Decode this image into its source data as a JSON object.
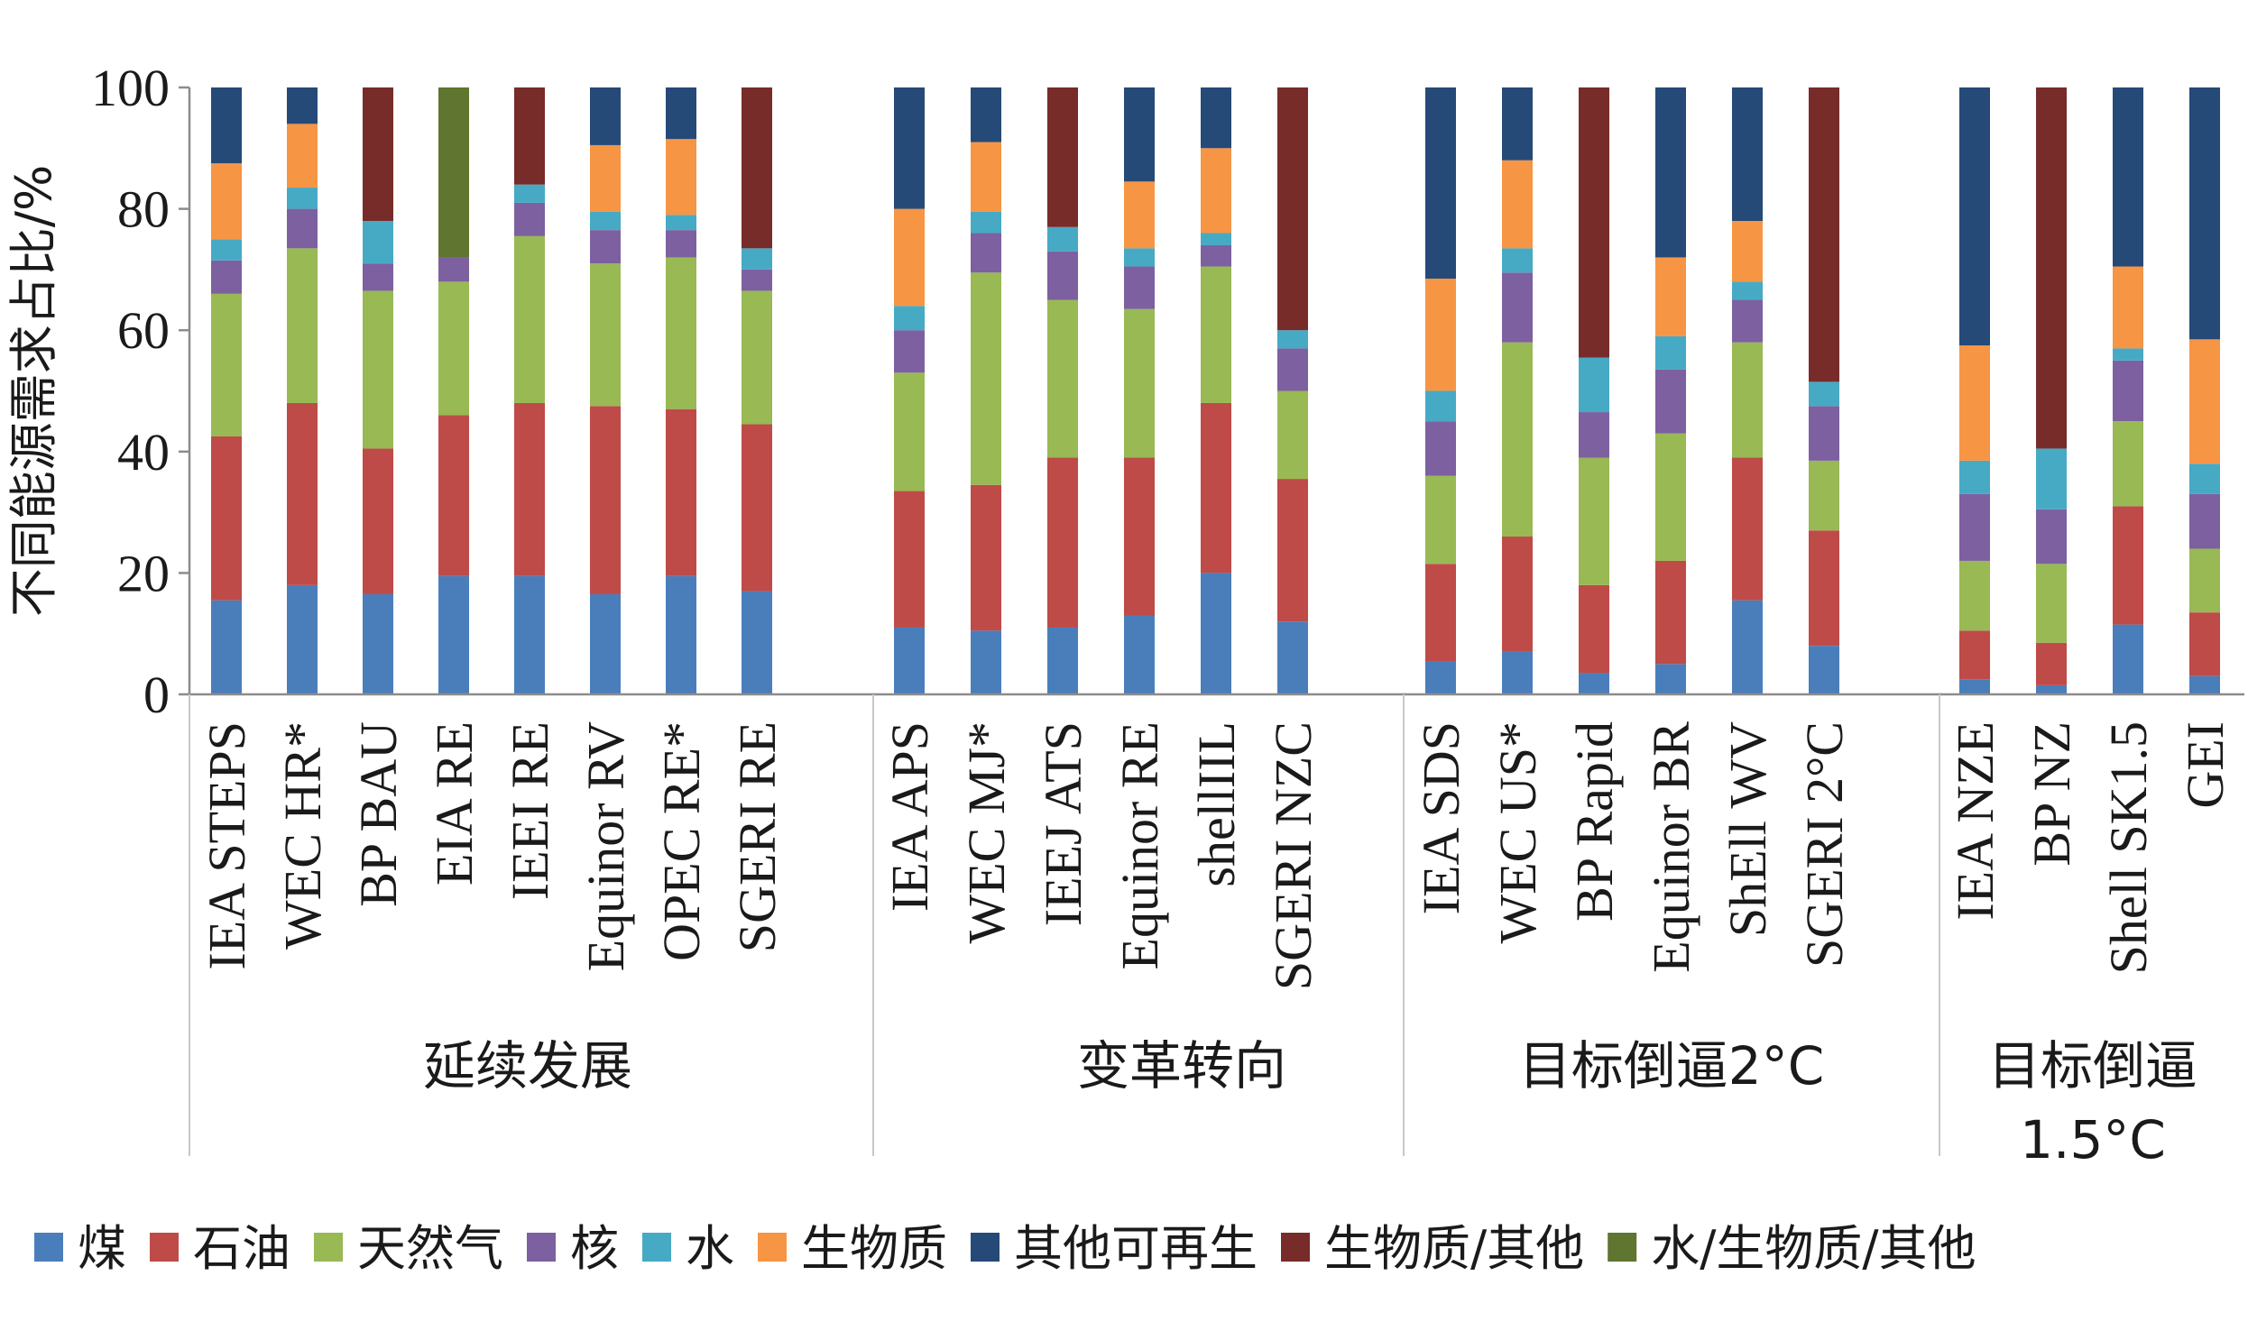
{
  "chart_data": {
    "type": "bar",
    "stacked": true,
    "ylabel": "不同能源需求占比/%",
    "ylim": [
      0,
      100
    ],
    "yticks": [
      0,
      20,
      40,
      60,
      80,
      100
    ],
    "grid": false,
    "legend_position": "bottom",
    "series": [
      {
        "name": "煤",
        "color": "#4a7ebb"
      },
      {
        "name": "石油",
        "color": "#be4b48"
      },
      {
        "name": "天然气",
        "color": "#98b954"
      },
      {
        "name": "核",
        "color": "#7d60a0"
      },
      {
        "name": "水",
        "color": "#46aac5"
      },
      {
        "name": "生物质",
        "color": "#f69544"
      },
      {
        "name": "其他可再生",
        "color": "#254a78"
      },
      {
        "name": "生物质/其他",
        "color": "#772c2a"
      },
      {
        "name": "水/生物质/其他",
        "color": "#5f7530"
      }
    ],
    "groups": [
      {
        "label": "延续发展",
        "categories": [
          "IEA STEPS",
          "WEC HR*",
          "BP BAU",
          "EIA RE",
          "IEEI RE",
          "Equinor RV",
          "OPEC RE*",
          "SGERI RE"
        ]
      },
      {
        "label": "变革转向",
        "categories": [
          "IEA APS",
          "WEC MJ*",
          "IEEJ ATS",
          "Equinor RE",
          "shellIIL",
          "SGERI NZC"
        ]
      },
      {
        "label": "目标倒逼2°C",
        "categories": [
          "IEA SDS",
          "WEC US*",
          "BP Rapid",
          "Equinor BR",
          "ShEll WV",
          "SGERI 2°C"
        ]
      },
      {
        "label": "目标倒逼1.5°C",
        "label_lines": [
          "目标倒逼",
          "1.5°C"
        ],
        "categories": [
          "IEA NZE",
          "BP NZ",
          "Shell SK1.5",
          "GEI"
        ]
      }
    ],
    "values": {
      "IEA STEPS": [
        15.5,
        27,
        23.5,
        5.5,
        3.5,
        12.5,
        12.5,
        0,
        0
      ],
      "WEC HR*": [
        18,
        30,
        25.5,
        6.5,
        3.5,
        10.5,
        6,
        0,
        0
      ],
      "BP BAU": [
        16.5,
        24,
        26,
        4.5,
        7,
        0,
        0,
        22,
        0
      ],
      "EIA RE": [
        19.5,
        26.5,
        22,
        4,
        0,
        0,
        0,
        0,
        28
      ],
      "IEEI RE": [
        19.5,
        28.5,
        27.5,
        5.5,
        3,
        0,
        0,
        16,
        0
      ],
      "Equinor RV": [
        16.5,
        31,
        23.5,
        5.5,
        3,
        11,
        9.5,
        0,
        0
      ],
      "OPEC RE*": [
        19.5,
        27.5,
        25,
        4.5,
        2.5,
        12.5,
        8.5,
        0,
        0
      ],
      "SGERI RE": [
        17,
        27.5,
        22,
        3.5,
        3.5,
        0,
        0,
        26.5,
        0
      ],
      "IEA APS": [
        11,
        22.5,
        19.5,
        7,
        4,
        16,
        20,
        0,
        0
      ],
      "WEC MJ*": [
        10.5,
        24,
        35,
        6.5,
        3.5,
        11.5,
        9,
        0,
        0
      ],
      "IEEJ ATS": [
        11,
        28,
        26,
        8,
        4,
        0,
        0,
        23,
        0
      ],
      "Equinor RE": [
        13,
        26,
        24.5,
        7,
        3,
        11,
        15.5,
        0,
        0
      ],
      "shellIIL": [
        20,
        28,
        22.5,
        3.5,
        2,
        14,
        10,
        0,
        0
      ],
      "SGERI NZC": [
        12,
        23.5,
        14.5,
        7,
        3,
        0,
        0,
        40,
        0
      ],
      "IEA SDS": [
        5.5,
        16,
        14.5,
        9,
        5,
        18.5,
        31.5,
        0,
        0
      ],
      "WEC US*": [
        7,
        19,
        32,
        11.5,
        4,
        14.5,
        12,
        0,
        0
      ],
      "BP Rapid": [
        3.5,
        14.5,
        21,
        7.5,
        9,
        0,
        0,
        44.5,
        0
      ],
      "Equinor BR": [
        5,
        17,
        21,
        10.5,
        5.5,
        13,
        28,
        0,
        0
      ],
      "ShEll WV": [
        15.5,
        23.5,
        19,
        7,
        3,
        10,
        22,
        0,
        0
      ],
      "SGERI 2°C": [
        8,
        19,
        11.5,
        9,
        4,
        0,
        0,
        48.5,
        0
      ],
      "IEA NZE": [
        2.5,
        8,
        11.5,
        11,
        5.5,
        19,
        42.5,
        0,
        0
      ],
      "BP NZ": [
        1.5,
        7,
        13,
        9,
        10,
        0,
        0,
        59.5,
        0
      ],
      "Shell SK1.5": [
        11.5,
        19.5,
        14,
        10,
        2,
        13.5,
        29.5,
        0,
        0
      ],
      "GEI": [
        3,
        10.5,
        10.5,
        9,
        5,
        20.5,
        41.5,
        0,
        0
      ]
    }
  }
}
